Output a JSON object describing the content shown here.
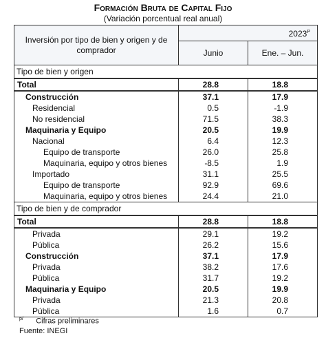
{
  "header": {
    "title": "Formación Bruta de Capital Fijo",
    "subtitle": "(Variación porcentual real anual)"
  },
  "table": {
    "label_header": "Inversión por tipo de bien y origen y de comprador",
    "year": "2023",
    "year_mark": "P",
    "columns": [
      "Junio",
      "Ene. – Jun."
    ],
    "sections": [
      {
        "title": "Tipo de bien y origen",
        "rows": [
          [
            "Total",
            "28.8",
            "18.8"
          ],
          [
            "Construcción",
            "37.1",
            "17.9"
          ],
          [
            "Residencial",
            "0.5",
            "-1.9"
          ],
          [
            "No residencial",
            "71.5",
            "38.3"
          ],
          [
            "Maquinaria y Equipo",
            "20.5",
            "19.9"
          ],
          [
            "Nacional",
            "6.4",
            "12.3"
          ],
          [
            "Equipo de transporte",
            "26.0",
            "25.8"
          ],
          [
            "Maquinaria, equipo y otros bienes",
            "-8.5",
            "1.9"
          ],
          [
            "Importado",
            "31.1",
            "25.5"
          ],
          [
            "Equipo de transporte",
            "92.9",
            "69.6"
          ],
          [
            "Maquinaria, equipo y otros bienes",
            "24.4",
            "21.0"
          ]
        ]
      },
      {
        "title": "Tipo de bien y de comprador",
        "rows": [
          [
            "Total",
            "28.8",
            "18.8"
          ],
          [
            "Privada",
            "29.1",
            "19.2"
          ],
          [
            "Pública",
            "26.2",
            "15.6"
          ],
          [
            "Construcción",
            "37.1",
            "17.9"
          ],
          [
            "Privada",
            "38.2",
            "17.6"
          ],
          [
            "Pública",
            "31.7",
            "19.2"
          ],
          [
            "Maquinaria y Equipo",
            "20.5",
            "19.9"
          ],
          [
            "Privada",
            "21.3",
            "20.8"
          ],
          [
            "Pública",
            "1.6",
            "0.7"
          ]
        ]
      }
    ]
  },
  "notes": {
    "mark": "p/",
    "preliminary": "Cifras preliminares",
    "source": "Fuente: INEGI"
  }
}
